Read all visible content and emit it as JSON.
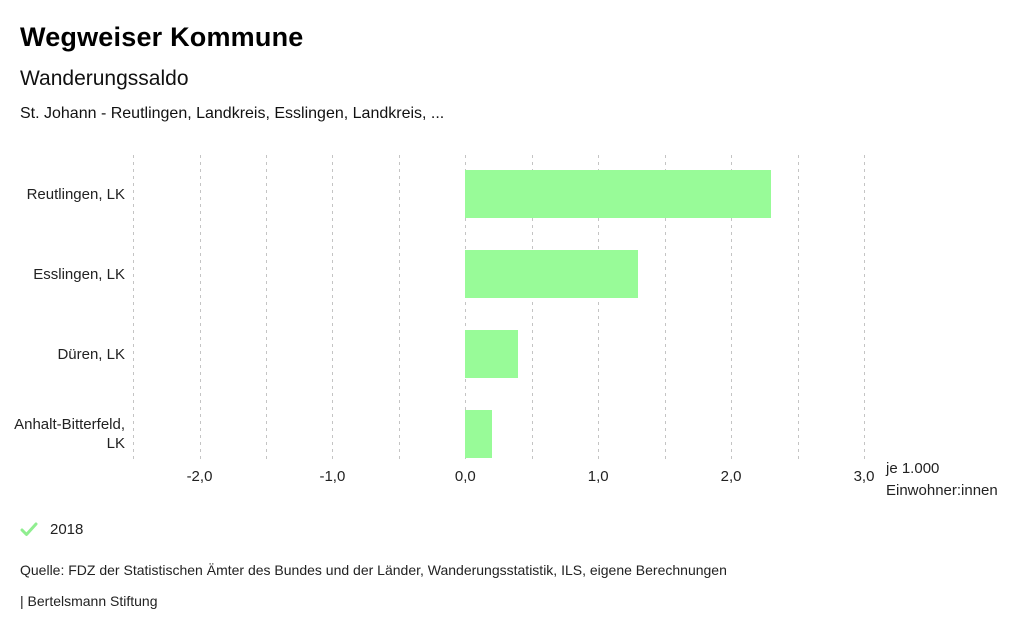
{
  "header": {
    "title": "Wegweiser Kommune",
    "subtitle": "Wanderungssaldo",
    "description": "St. Johann - Reutlingen, Landkreis, Esslingen, Landkreis, ..."
  },
  "chart_data": {
    "type": "bar",
    "orientation": "horizontal",
    "title": "Wanderungssaldo",
    "categories": [
      "Reutlingen, LK",
      "Esslingen, LK",
      "Düren, LK",
      "Anhalt-Bitterfeld, LK"
    ],
    "series": [
      {
        "name": "2018",
        "values": [
          2.3,
          1.3,
          0.4,
          0.2
        ]
      }
    ],
    "xlabel": "je 1.000 Einwohner:innen",
    "ylabel": "",
    "xlim": [
      -2.5,
      3.0
    ],
    "gridline_step": 0.5,
    "grid": true,
    "x_ticks": [
      {
        "value": -2,
        "label": "-2,0"
      },
      {
        "value": -1,
        "label": "-1,0"
      },
      {
        "value": 0,
        "label": "0,0"
      },
      {
        "value": 1,
        "label": "1,0"
      },
      {
        "value": 2,
        "label": "2,0"
      },
      {
        "value": 3,
        "label": "3,0"
      }
    ],
    "bar_color": "#98fb98",
    "gridline_color": "#c4c4c4",
    "legend_position": "bottom-left"
  },
  "axis_unit": {
    "line1": "je 1.000",
    "line2": "Einwohner:innen"
  },
  "legend": {
    "check_color": "#90ee90",
    "label": "2018"
  },
  "footer": {
    "source": "Quelle: FDZ der Statistischen Ämter des Bundes und der Länder, Wanderungsstatistik, ILS, eigene Berechnungen",
    "attribution": "| Bertelsmann Stiftung"
  }
}
